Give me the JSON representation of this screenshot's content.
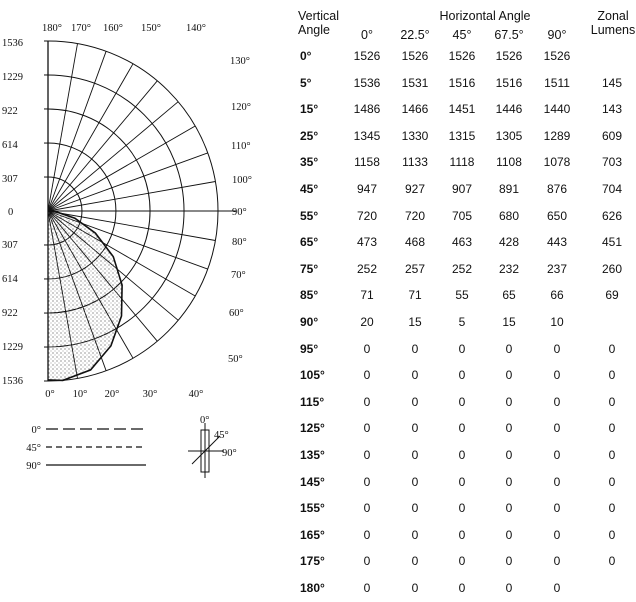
{
  "chart_data": {
    "type": "polar",
    "radial_ticks_upper": [
      "1536",
      "1229",
      "922",
      "614",
      "307"
    ],
    "center_tick": "0",
    "radial_ticks_lower": [
      "307",
      "614",
      "922",
      "1229",
      "1536"
    ],
    "angle_labels_top": [
      "180°",
      "170°",
      "160°",
      "150°",
      "140°"
    ],
    "angle_labels_right": [
      "130°",
      "120°",
      "110°",
      "100°",
      "90°",
      "80°",
      "70°",
      "60°",
      "50°"
    ],
    "angle_labels_bottom": [
      "0°",
      "10°",
      "20°",
      "30°",
      "40°"
    ],
    "r_max": 1536,
    "rings": [
      307,
      614,
      922,
      1229,
      1536
    ],
    "curve": {
      "angles": [
        0,
        5,
        15,
        25,
        35,
        45,
        55,
        65,
        75,
        85,
        90,
        95
      ],
      "values": [
        1526,
        1536,
        1486,
        1345,
        1158,
        947,
        720,
        473,
        252,
        71,
        20,
        0
      ]
    }
  },
  "legend": {
    "items": [
      {
        "label": "0°",
        "style": "long-dash"
      },
      {
        "label": "45°",
        "style": "short-dash"
      },
      {
        "label": "90°",
        "style": "solid"
      }
    ],
    "fixture_labels": {
      "top": "0°",
      "diag": "45°",
      "right": "90°"
    }
  },
  "table": {
    "header_vertical": "Vertical Angle",
    "header_horizontal": "Horizontal Angle",
    "header_zonal": "Zonal Lumens",
    "columns": [
      "0°",
      "22.5°",
      "45°",
      "67.5°",
      "90°"
    ],
    "rows": [
      {
        "angle": "0°",
        "values": [
          "1526",
          "1526",
          "1526",
          "1526",
          "1526"
        ],
        "zonal": ""
      },
      {
        "angle": "5°",
        "values": [
          "1536",
          "1531",
          "1516",
          "1516",
          "1511"
        ],
        "zonal": "145"
      },
      {
        "angle": "15°",
        "values": [
          "1486",
          "1466",
          "1451",
          "1446",
          "1440"
        ],
        "zonal": "143"
      },
      {
        "angle": "25°",
        "values": [
          "1345",
          "1330",
          "1315",
          "1305",
          "1289"
        ],
        "zonal": "609"
      },
      {
        "angle": "35°",
        "values": [
          "1158",
          "1133",
          "1118",
          "1108",
          "1078"
        ],
        "zonal": "703"
      },
      {
        "angle": "45°",
        "values": [
          "947",
          "927",
          "907",
          "891",
          "876"
        ],
        "zonal": "704"
      },
      {
        "angle": "55°",
        "values": [
          "720",
          "720",
          "705",
          "680",
          "650"
        ],
        "zonal": "626"
      },
      {
        "angle": "65°",
        "values": [
          "473",
          "468",
          "463",
          "428",
          "443"
        ],
        "zonal": "451"
      },
      {
        "angle": "75°",
        "values": [
          "252",
          "257",
          "252",
          "232",
          "237"
        ],
        "zonal": "260"
      },
      {
        "angle": "85°",
        "values": [
          "71",
          "71",
          "55",
          "65",
          "66"
        ],
        "zonal": "69"
      },
      {
        "angle": "90°",
        "values": [
          "20",
          "15",
          "5",
          "15",
          "10"
        ],
        "zonal": ""
      },
      {
        "angle": "95°",
        "values": [
          "0",
          "0",
          "0",
          "0",
          "0"
        ],
        "zonal": "0"
      },
      {
        "angle": "105°",
        "values": [
          "0",
          "0",
          "0",
          "0",
          "0"
        ],
        "zonal": "0"
      },
      {
        "angle": "115°",
        "values": [
          "0",
          "0",
          "0",
          "0",
          "0"
        ],
        "zonal": "0"
      },
      {
        "angle": "125°",
        "values": [
          "0",
          "0",
          "0",
          "0",
          "0"
        ],
        "zonal": "0"
      },
      {
        "angle": "135°",
        "values": [
          "0",
          "0",
          "0",
          "0",
          "0"
        ],
        "zonal": "0"
      },
      {
        "angle": "145°",
        "values": [
          "0",
          "0",
          "0",
          "0",
          "0"
        ],
        "zonal": "0"
      },
      {
        "angle": "155°",
        "values": [
          "0",
          "0",
          "0",
          "0",
          "0"
        ],
        "zonal": "0"
      },
      {
        "angle": "165°",
        "values": [
          "0",
          "0",
          "0",
          "0",
          "0"
        ],
        "zonal": "0"
      },
      {
        "angle": "175°",
        "values": [
          "0",
          "0",
          "0",
          "0",
          "0"
        ],
        "zonal": "0"
      },
      {
        "angle": "180°",
        "values": [
          "0",
          "0",
          "0",
          "0",
          "0"
        ],
        "zonal": ""
      }
    ]
  }
}
